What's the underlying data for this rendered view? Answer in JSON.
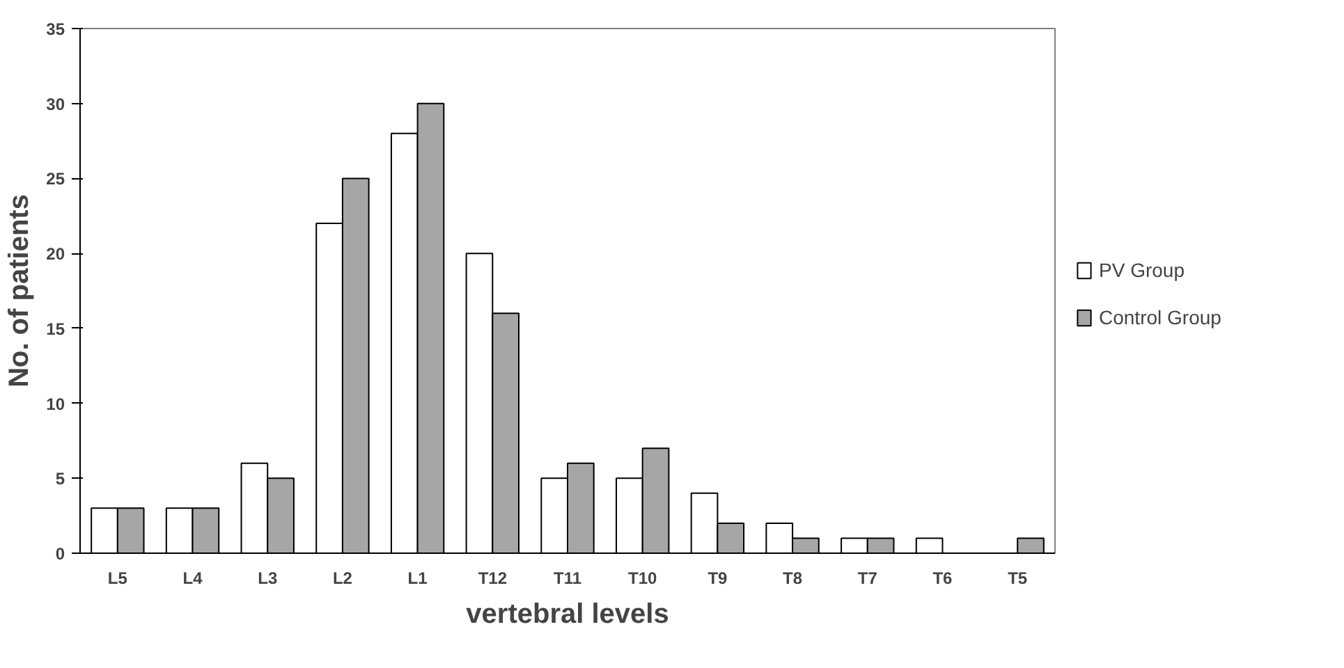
{
  "chart_data": {
    "type": "bar",
    "xlabel": "vertebral levels",
    "ylabel": "No. of patients",
    "categories": [
      "L5",
      "L4",
      "L3",
      "L2",
      "L1",
      "T12",
      "T11",
      "T10",
      "T9",
      "T8",
      "T7",
      "T6",
      "T5"
    ],
    "series": [
      {
        "name": "PV Group",
        "color": "#ffffff",
        "values": [
          3,
          3,
          6,
          22,
          28,
          20,
          5,
          5,
          4,
          2,
          1,
          1,
          0
        ]
      },
      {
        "name": "Control Group",
        "color": "#a6a6a6",
        "values": [
          3,
          3,
          5,
          25,
          30,
          16,
          6,
          7,
          2,
          1,
          1,
          0,
          1
        ]
      }
    ],
    "ylim": [
      0,
      35
    ],
    "yticks": [
      0,
      5,
      10,
      15,
      20,
      25,
      30,
      35
    ],
    "grid": false,
    "legend": "right"
  }
}
